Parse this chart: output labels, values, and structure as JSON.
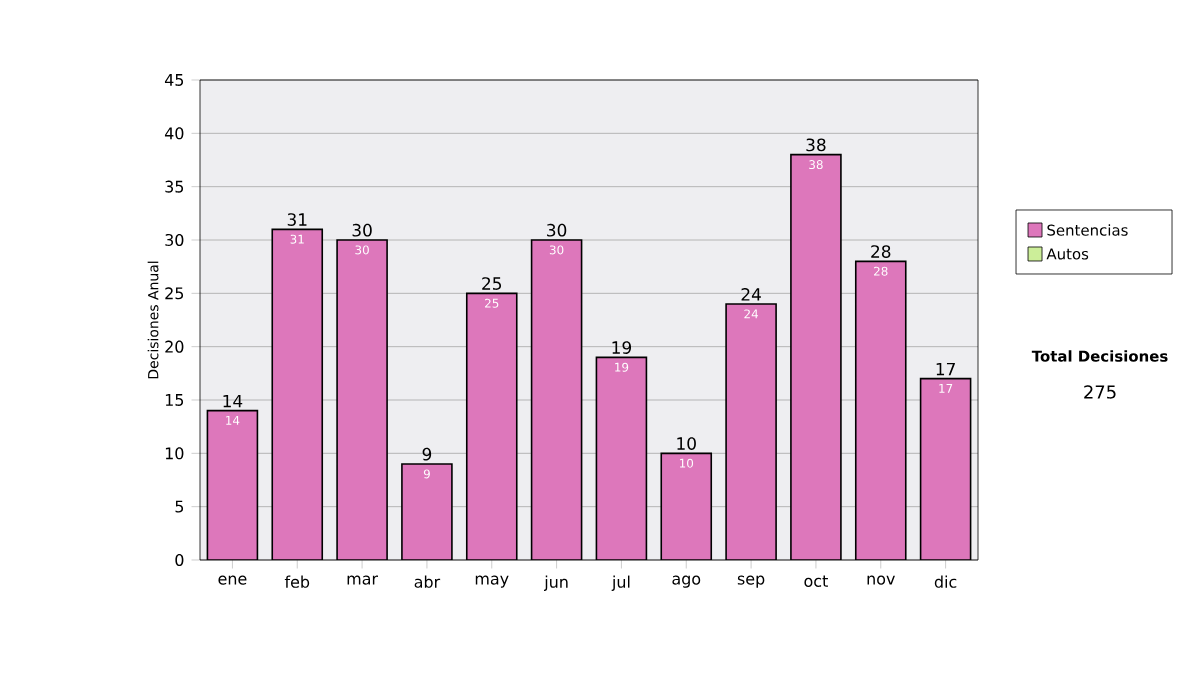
{
  "chart_data": {
    "type": "bar",
    "ylabel": "Decisiones Anual",
    "categories": [
      "ene",
      "feb",
      "mar",
      "abr",
      "may",
      "jun",
      "jul",
      "ago",
      "sep",
      "oct",
      "nov",
      "dic"
    ],
    "series": [
      {
        "name": "Sentencias",
        "color": "#dd77bb",
        "values": [
          14,
          31,
          30,
          9,
          25,
          30,
          19,
          10,
          24,
          38,
          28,
          17
        ]
      },
      {
        "name": "Autos",
        "color": "#ccee99",
        "values": [
          null,
          null,
          null,
          null,
          null,
          null,
          null,
          null,
          null,
          null,
          null,
          null
        ]
      }
    ],
    "ylim": [
      0,
      45
    ],
    "yticks": [
      0,
      5,
      10,
      15,
      20,
      25,
      30,
      35,
      40,
      45
    ],
    "grid": "y",
    "legend": "right",
    "data_labels": true,
    "annotations": [
      "Total Decisiones",
      "275",
      {
        "text": "14",
        "x": "ene",
        "y": 14
      },
      {
        "text": "31",
        "x": "feb",
        "y": 31
      },
      {
        "text": "30",
        "x": "mar",
        "y": 30
      },
      {
        "text": "9",
        "x": "abr",
        "y": 9
      },
      {
        "text": "25",
        "x": "may",
        "y": 25
      },
      {
        "text": "30",
        "x": "jun",
        "y": 30
      },
      {
        "text": "19",
        "x": "jul",
        "y": 19
      },
      {
        "text": "10",
        "x": "ago",
        "y": 10
      },
      {
        "text": "24",
        "x": "sep",
        "y": 24
      },
      {
        "text": "38",
        "x": "oct",
        "y": 38
      },
      {
        "text": "28",
        "x": "nov",
        "y": 28
      },
      {
        "text": "17",
        "x": "dic",
        "y": 17
      }
    ]
  }
}
